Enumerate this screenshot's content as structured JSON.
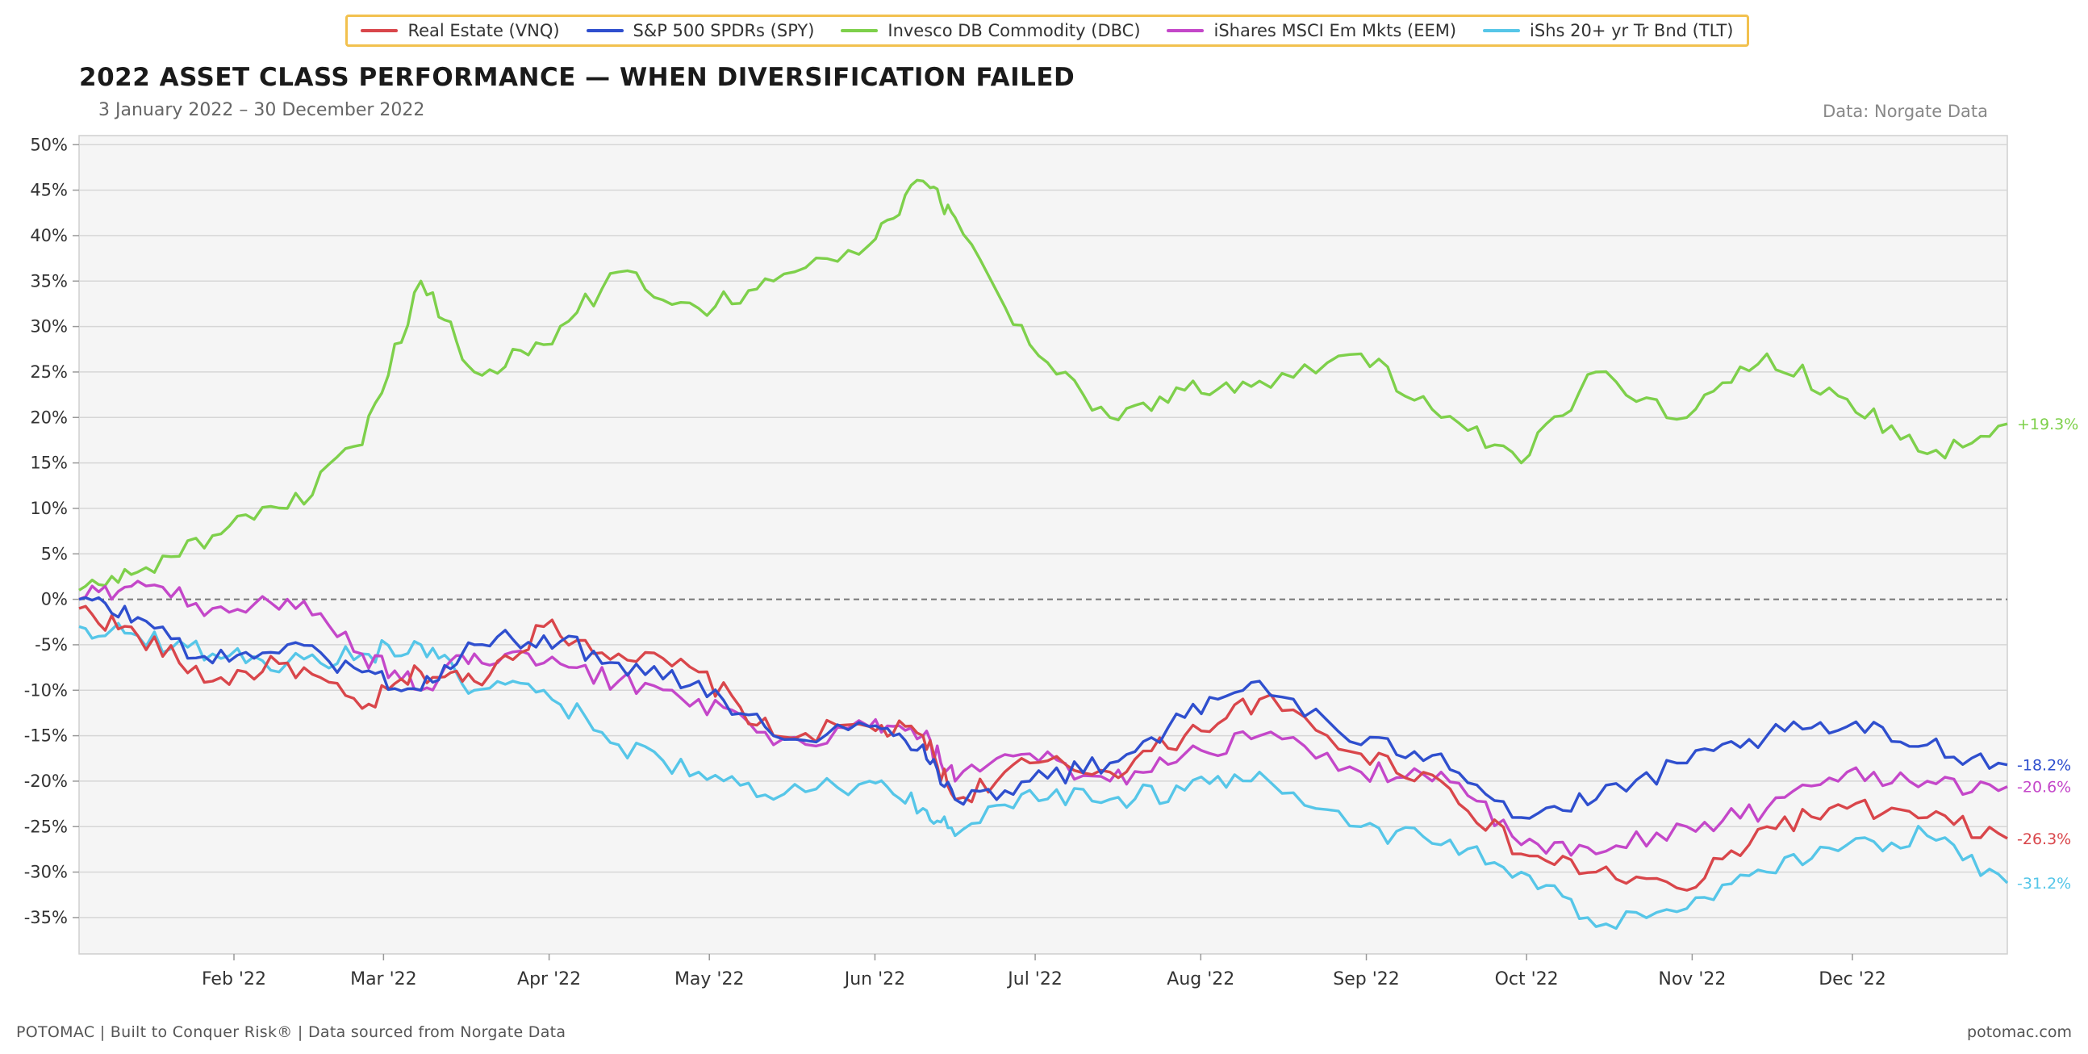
{
  "legend": {
    "items": [
      {
        "label": "Real Estate (VNQ)",
        "color": "#d9464b"
      },
      {
        "label": "S&P 500 SPDRs (SPY)",
        "color": "#2f4fce"
      },
      {
        "label": "Invesco DB Commodity (DBC)",
        "color": "#7ed04b"
      },
      {
        "label": "iShares MSCI Em Mkts (EEM)",
        "color": "#c447c9"
      },
      {
        "label": "iShs 20+ yr Tr Bnd (TLT)",
        "color": "#56c6e8"
      }
    ]
  },
  "header": {
    "title": "2022 ASSET CLASS PERFORMANCE — WHEN DIVERSIFICATION FAILED",
    "subtitle": "3 January 2022 – 30 December 2022",
    "source": "Data: Norgate Data"
  },
  "footer": {
    "left": "POTOMAC  |  Built to Conquer Risk®  |  Data sourced from Norgate Data",
    "right": "potomac.com"
  },
  "chart_data": {
    "type": "line",
    "title": "2022 ASSET CLASS PERFORMANCE — WHEN DIVERSIFICATION FAILED",
    "subtitle": "3 January 2022 – 30 December 2022",
    "xlabel": "",
    "ylabel": "",
    "ylim": [
      -39,
      51
    ],
    "x_ticks": [
      "Feb '22",
      "Mar '22",
      "Apr '22",
      "May '22",
      "Jun '22",
      "Jul '22",
      "Aug '22",
      "Sep '22",
      "Oct '22",
      "Nov '22",
      "Dec '22"
    ],
    "y_ticks": [
      "50%",
      "45%",
      "40%",
      "35%",
      "30%",
      "25%",
      "20%",
      "15%",
      "10%",
      "5%",
      "0%",
      "-5%",
      "-10%",
      "-15%",
      "-20%",
      "-25%",
      "-30%",
      "-35%"
    ],
    "y_tick_values": [
      50,
      45,
      40,
      35,
      30,
      25,
      20,
      15,
      10,
      5,
      0,
      -5,
      -10,
      -15,
      -20,
      -25,
      -30,
      -35
    ],
    "grid": true,
    "zero_line": "dashed",
    "legend_position": "top-center",
    "end_labels": [
      "+19.3%",
      "-18.2%",
      "-20.6%",
      "-26.3%",
      "-31.2%"
    ],
    "x": [
      "2022-01-03",
      "2022-01-14",
      "2022-01-28",
      "2022-02-11",
      "2022-02-25",
      "2022-03-08",
      "2022-03-18",
      "2022-03-31",
      "2022-04-14",
      "2022-04-29",
      "2022-05-13",
      "2022-05-31",
      "2022-06-10",
      "2022-06-16",
      "2022-06-30",
      "2022-07-15",
      "2022-07-29",
      "2022-08-12",
      "2022-08-31",
      "2022-09-15",
      "2022-09-30",
      "2022-10-14",
      "2022-10-31",
      "2022-11-15",
      "2022-11-30",
      "2022-12-15",
      "2022-12-30"
    ],
    "series": [
      {
        "name": "Real Estate (VNQ)",
        "color": "#d9464b",
        "values": [
          -1,
          -4,
          -9,
          -7,
          -12,
          -8,
          -9,
          -3,
          -6,
          -8,
          -15,
          -14,
          -15,
          -22,
          -18,
          -19,
          -15,
          -11,
          -17,
          -20,
          -28,
          -30,
          -32,
          -25,
          -23,
          -24,
          -26.3
        ]
      },
      {
        "name": "S&P 500 SPDRs (SPY)",
        "color": "#2f4fce",
        "values": [
          0,
          -2,
          -7,
          -5,
          -8,
          -10,
          -5,
          -4,
          -7,
          -9,
          -15,
          -14,
          -16,
          -22,
          -20,
          -18,
          -13,
          -9,
          -16,
          -17,
          -24,
          -22,
          -18,
          -15,
          -14,
          -16,
          -18.2
        ]
      },
      {
        "name": "Invesco DB Commodity (DBC)",
        "color": "#7ed04b",
        "values": [
          1,
          3,
          7,
          10,
          17,
          35,
          25,
          28,
          36,
          32,
          35,
          39,
          46,
          42,
          28,
          20,
          23,
          24,
          27,
          20,
          15,
          25,
          20,
          27,
          22,
          16,
          19.3
        ]
      },
      {
        "name": "iShares MSCI Em Mkts (EEM)",
        "color": "#c447c9",
        "values": [
          0,
          2,
          -1,
          0,
          -6,
          -10,
          -6,
          -7,
          -9,
          -11,
          -16,
          -14,
          -15,
          -20,
          -17,
          -20,
          -17,
          -15,
          -19,
          -19,
          -27,
          -28,
          -25,
          -23,
          -19,
          -20,
          -20.6
        ]
      },
      {
        "name": "iShs 20+ yr Tr Bnd (TLT)",
        "color": "#56c6e8",
        "values": [
          -3,
          -4,
          -6,
          -7,
          -6,
          -5,
          -10,
          -10,
          -16,
          -19,
          -22,
          -20,
          -23,
          -26,
          -21,
          -22,
          -21,
          -19,
          -25,
          -27,
          -30,
          -36,
          -34,
          -30,
          -27,
          -26,
          -31.2
        ]
      }
    ]
  }
}
